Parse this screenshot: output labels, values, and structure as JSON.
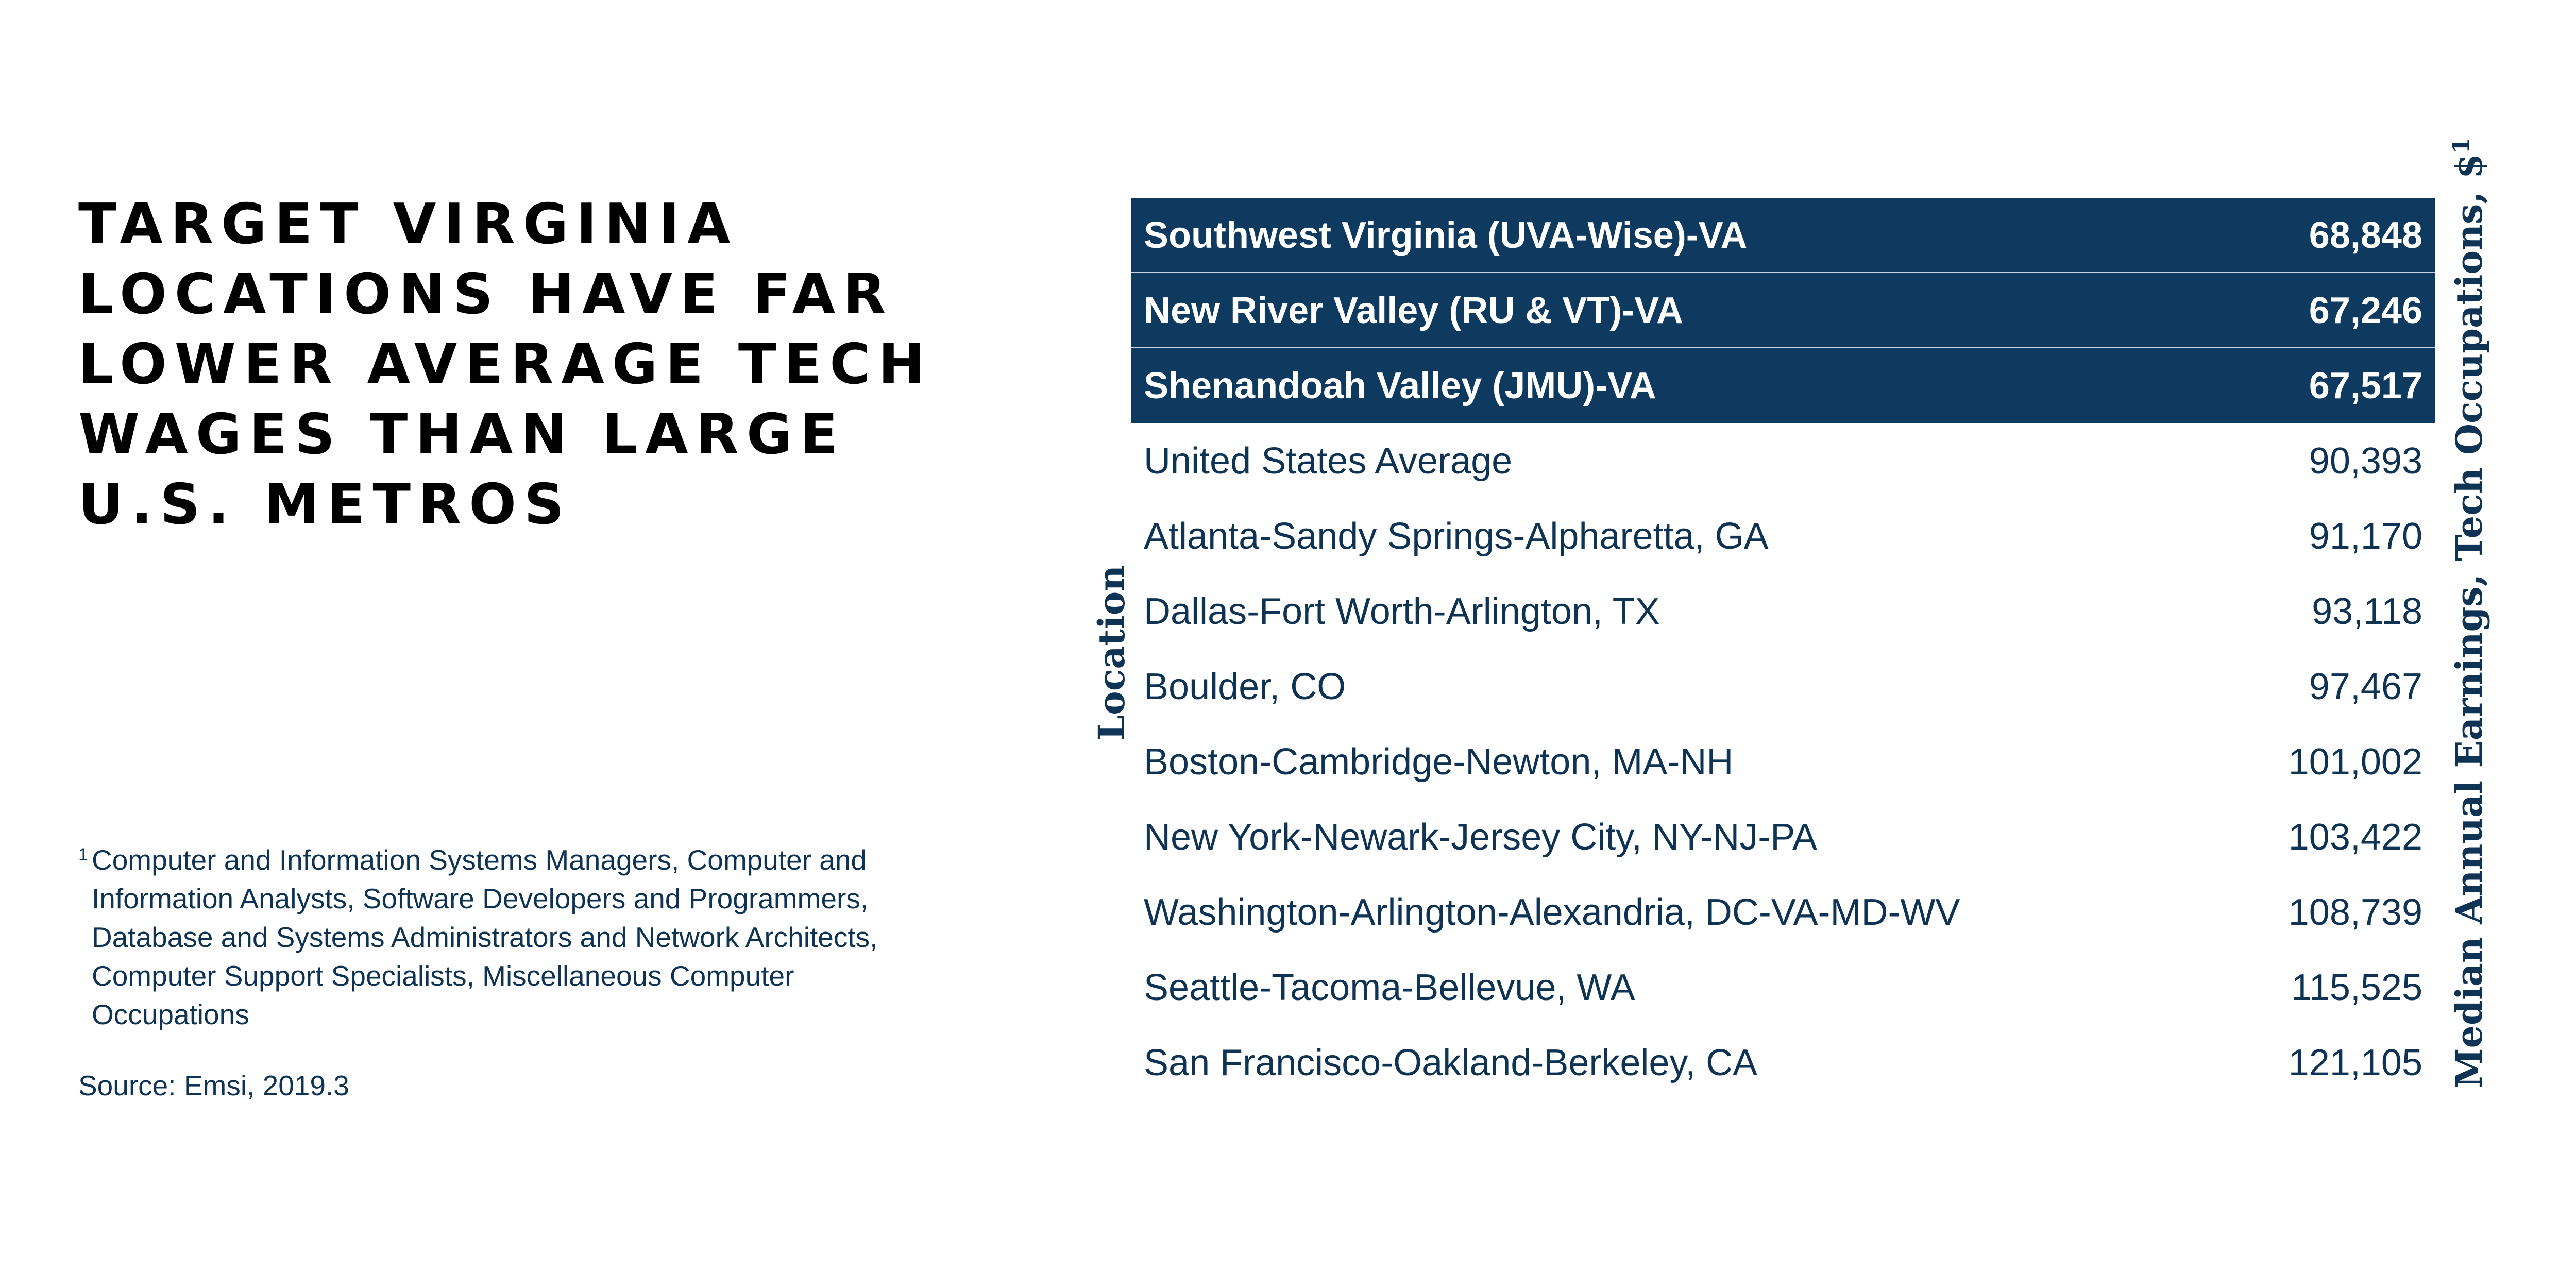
{
  "title": "TARGET VIRGINIA LOCATIONS HAVE FAR LOWER AVERAGE TECH WAGES THAN LARGE U.S. METROS",
  "footnote": {
    "mark": "1",
    "text": "Computer and Information Systems Managers, Computer and Information Analysts, Software Developers and Programmers, Database and Systems Administrators and Network Architects, Computer Support Specialists, Miscellaneous Computer Occupations"
  },
  "source": "Source: Emsi, 2019.3",
  "colors": {
    "highlight_bg": "#0e3a60",
    "text": "#0e3354",
    "highlight_text": "#ffffff"
  },
  "chart_data": {
    "type": "table",
    "xlabel": "Location",
    "ylabel": "Median Annual Earnings, Tech Occupations, $",
    "ylabel_superscript": "1",
    "rows": [
      {
        "location": "Southwest Virginia (UVA-Wise)-VA",
        "value": "68,848",
        "highlight": true
      },
      {
        "location": "New River Valley (RU & VT)-VA",
        "value": "67,246",
        "highlight": true
      },
      {
        "location": "Shenandoah Valley (JMU)-VA",
        "value": "67,517",
        "highlight": true
      },
      {
        "location": "United States Average",
        "value": "90,393",
        "highlight": false
      },
      {
        "location": "Atlanta-Sandy Springs-Alpharetta, GA",
        "value": "91,170",
        "highlight": false
      },
      {
        "location": "Dallas-Fort Worth-Arlington, TX",
        "value": "93,118",
        "highlight": false
      },
      {
        "location": "Boulder, CO",
        "value": "97,467",
        "highlight": false
      },
      {
        "location": "Boston-Cambridge-Newton, MA-NH",
        "value": "101,002",
        "highlight": false
      },
      {
        "location": "New York-Newark-Jersey City, NY-NJ-PA",
        "value": "103,422",
        "highlight": false
      },
      {
        "location": "Washington-Arlington-Alexandria, DC-VA-MD-WV",
        "value": "108,739",
        "highlight": false
      },
      {
        "location": "Seattle-Tacoma-Bellevue, WA",
        "value": "115,525",
        "highlight": false
      },
      {
        "location": "San Francisco-Oakland-Berkeley, CA",
        "value": "121,105",
        "highlight": false
      }
    ]
  }
}
